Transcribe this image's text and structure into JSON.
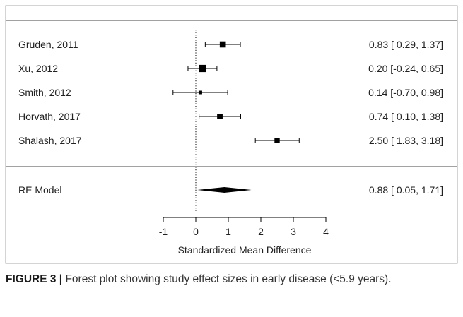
{
  "chart_data": {
    "type": "forest",
    "xlabel": "Standardized Mean Difference",
    "xlim": [
      -1,
      4
    ],
    "xticks": [
      -1,
      0,
      1,
      2,
      3,
      4
    ],
    "reference_line": 0,
    "studies": [
      {
        "label": "Gruden, 2011",
        "estimate": 0.83,
        "lower": 0.29,
        "upper": 1.37,
        "text": "0.83 [ 0.29, 1.37]",
        "weight": 0.7
      },
      {
        "label": "Xu, 2012",
        "estimate": 0.2,
        "lower": -0.24,
        "upper": 0.65,
        "text": "0.20 [-0.24, 0.65]",
        "weight": 0.9
      },
      {
        "label": "Smith, 2012",
        "estimate": 0.14,
        "lower": -0.7,
        "upper": 0.98,
        "text": "0.14 [-0.70, 0.98]",
        "weight": 0.25
      },
      {
        "label": "Horvath, 2017",
        "estimate": 0.74,
        "lower": 0.1,
        "upper": 1.38,
        "text": "0.74 [ 0.10, 1.38]",
        "weight": 0.6
      },
      {
        "label": "Shalash, 2017",
        "estimate": 2.5,
        "lower": 1.83,
        "upper": 3.18,
        "text": "2.50 [ 1.83, 3.18]",
        "weight": 0.55
      }
    ],
    "summary": {
      "label": "RE Model",
      "estimate": 0.88,
      "lower": 0.05,
      "upper": 1.71,
      "text": "0.88 [ 0.05, 1.71]"
    }
  },
  "caption": {
    "label": "FIGURE 3 |",
    "text": " Forest plot showing study effect sizes in early disease (<5.9 years)."
  },
  "colors": {
    "ink": "#000000",
    "frame": "#aaaaaa",
    "text": "#333333"
  }
}
